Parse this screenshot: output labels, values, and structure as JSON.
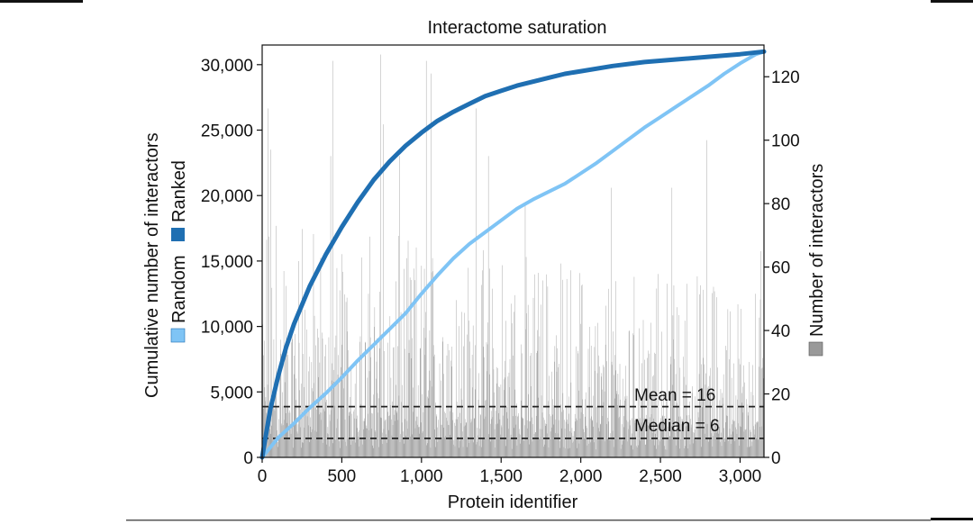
{
  "chart_data": {
    "type": "bar+line",
    "title": "Interactome saturation",
    "xlabel": "Protein identifier",
    "ylabel_left": "Cumulative number of interactors",
    "ylabel_right": "Number of interactors",
    "xlim": [
      0,
      3150
    ],
    "ylim_left": [
      0,
      31500
    ],
    "ylim_right": [
      0,
      130
    ],
    "x_ticks": [
      0,
      500,
      1000,
      1500,
      2000,
      2500,
      3000
    ],
    "x_tick_labels": [
      "0",
      "500",
      "1,000",
      "1,500",
      "2,000",
      "2,500",
      "3,000"
    ],
    "y_left_ticks": [
      0,
      5000,
      10000,
      15000,
      20000,
      25000,
      30000
    ],
    "y_left_tick_labels": [
      "0",
      "5,000",
      "10,000",
      "15,000",
      "20,000",
      "25,000",
      "30,000"
    ],
    "y_right_ticks": [
      0,
      20,
      40,
      60,
      80,
      100,
      120
    ],
    "y_right_tick_labels": [
      "0",
      "20",
      "40",
      "60",
      "80",
      "100",
      "120"
    ],
    "legend": {
      "left": [
        {
          "name": "Random",
          "color": "#7fc4f5"
        },
        {
          "name": "Ranked",
          "color": "#1f6fb2"
        }
      ],
      "right": [
        {
          "name": "Number of interactors",
          "color": "#999999"
        }
      ]
    },
    "series": [
      {
        "name": "Ranked",
        "axis": "left",
        "color": "#1f6fb2",
        "x": [
          0,
          25,
          50,
          100,
          150,
          200,
          300,
          400,
          500,
          600,
          700,
          800,
          900,
          1000,
          1100,
          1200,
          1300,
          1400,
          1500,
          1600,
          1700,
          1800,
          1900,
          2000,
          2200,
          2400,
          2600,
          2800,
          3000,
          3150
        ],
        "y": [
          0,
          1800,
          3600,
          6200,
          8400,
          10200,
          13100,
          15500,
          17600,
          19500,
          21200,
          22600,
          23800,
          24800,
          25700,
          26400,
          27000,
          27600,
          28000,
          28400,
          28700,
          29000,
          29300,
          29500,
          29900,
          30200,
          30400,
          30600,
          30800,
          31000
        ]
      },
      {
        "name": "Random",
        "axis": "left",
        "color": "#7fc4f5",
        "x": [
          0,
          100,
          200,
          300,
          400,
          500,
          600,
          700,
          800,
          900,
          1000,
          1100,
          1200,
          1300,
          1400,
          1500,
          1600,
          1700,
          1800,
          1900,
          2000,
          2100,
          2200,
          2300,
          2400,
          2500,
          2600,
          2700,
          2800,
          2900,
          3000,
          3100,
          3150
        ],
        "y": [
          0,
          1500,
          2600,
          3800,
          4900,
          6100,
          7400,
          8600,
          9800,
          11000,
          12500,
          13900,
          15200,
          16300,
          17200,
          18100,
          19000,
          19700,
          20300,
          20900,
          21700,
          22500,
          23400,
          24300,
          25200,
          26000,
          26800,
          27600,
          28400,
          29300,
          30100,
          30800,
          31000
        ]
      }
    ],
    "bars": {
      "name": "Number of interactors",
      "axis": "right",
      "color": "#999999",
      "count": 3150,
      "mean": 16,
      "median": 6,
      "tall_peaks": [
        {
          "x": 35,
          "y": 110
        },
        {
          "x": 55,
          "y": 97
        },
        {
          "x": 88,
          "y": 73
        },
        {
          "x": 250,
          "y": 72
        },
        {
          "x": 430,
          "y": 95
        },
        {
          "x": 440,
          "y": 125
        },
        {
          "x": 740,
          "y": 127
        },
        {
          "x": 760,
          "y": 105
        },
        {
          "x": 860,
          "y": 95
        },
        {
          "x": 1030,
          "y": 125
        },
        {
          "x": 1060,
          "y": 121
        },
        {
          "x": 1340,
          "y": 110
        },
        {
          "x": 1420,
          "y": 95
        },
        {
          "x": 1650,
          "y": 80
        },
        {
          "x": 2190,
          "y": 85
        },
        {
          "x": 2570,
          "y": 85
        },
        {
          "x": 2790,
          "y": 100
        },
        {
          "x": 3130,
          "y": 65
        }
      ]
    },
    "reference_lines": [
      {
        "label": "Mean = 16",
        "value": 16,
        "axis": "right",
        "style": "dashed"
      },
      {
        "label": "Median = 6",
        "value": 6,
        "axis": "right",
        "style": "dashed"
      }
    ]
  }
}
